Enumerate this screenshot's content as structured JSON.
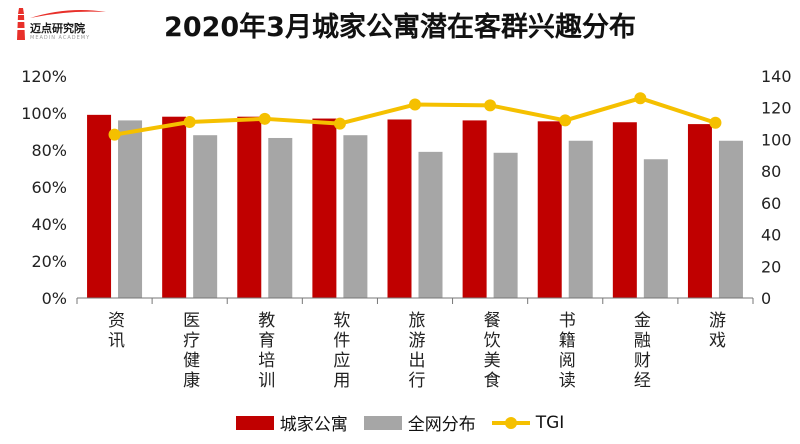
{
  "header": {
    "logo_text": "迈点研究院",
    "logo_sub": "MEADIN ACADEMY",
    "title": "2020年3月城家公寓潜在客群兴趣分布"
  },
  "colors": {
    "series1": "#C00000",
    "series2": "#A6A6A6",
    "line": "#F5C000",
    "logo_red": "#E8302A"
  },
  "chart_data": {
    "type": "bar",
    "title": "2020年3月城家公寓潜在客群兴趣分布",
    "categories": [
      "资讯",
      "医疗健康",
      "教育培训",
      "软件应用",
      "旅游出行",
      "餐饮美食",
      "书籍阅读",
      "金融财经",
      "游戏"
    ],
    "series": [
      {
        "name": "城家公寓",
        "axis": "left",
        "kind": "bar",
        "values": [
          99,
          98,
          98,
          97,
          96.5,
          96,
          95.5,
          95,
          94
        ]
      },
      {
        "name": "全网分布",
        "axis": "left",
        "kind": "bar",
        "values": [
          96,
          88,
          86.5,
          88,
          79,
          78.5,
          85,
          75,
          85
        ]
      },
      {
        "name": "TGI",
        "axis": "right",
        "kind": "line",
        "values": [
          103,
          111,
          113,
          110,
          122,
          121.5,
          112,
          126,
          110.5
        ]
      }
    ],
    "y_left": {
      "min": 0,
      "max": 120,
      "step": 20,
      "ticks": [
        "0%",
        "20%",
        "40%",
        "60%",
        "80%",
        "100%",
        "120%"
      ]
    },
    "y_right": {
      "min": 0,
      "max": 140,
      "step": 20,
      "ticks": [
        "0",
        "20",
        "40",
        "60",
        "80",
        "100",
        "120",
        "140"
      ]
    },
    "grid": false,
    "legend_position": "bottom"
  }
}
